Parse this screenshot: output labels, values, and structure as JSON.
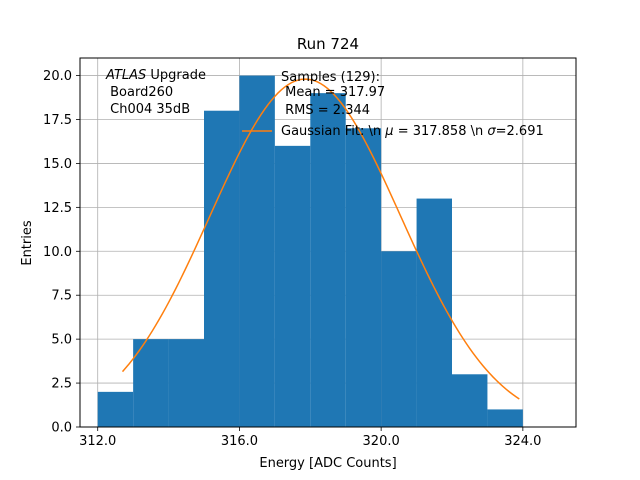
{
  "chart_data": {
    "type": "bar",
    "title": "Run 724",
    "xlabel": "Energy [ADC Counts]",
    "ylabel": "Entries",
    "xlim": [
      311.5,
      325.5
    ],
    "ylim": [
      0,
      21
    ],
    "xticks": [
      312,
      316,
      320,
      324
    ],
    "xtick_labels": [
      "312.0",
      "316.0",
      "320.0",
      "324.0"
    ],
    "yticks": [
      0,
      2.5,
      5,
      7.5,
      10,
      12.5,
      15,
      17.5,
      20
    ],
    "ytick_labels": [
      "0.0",
      "2.5",
      "5.0",
      "7.5",
      "10.0",
      "12.5",
      "15.0",
      "17.5",
      "20.0"
    ],
    "grid": true,
    "bar_color": "#1f77b4",
    "fit_color": "#ff7f0e",
    "histogram": {
      "bin_edges": [
        312,
        313,
        314,
        315,
        316,
        317,
        318,
        319,
        320,
        321,
        322,
        323,
        324
      ],
      "counts": [
        2,
        5,
        5,
        18,
        20,
        16,
        19,
        17,
        10,
        13,
        3,
        1
      ]
    },
    "fit": {
      "mu": 317.858,
      "sigma": 2.691,
      "peak": 19.8,
      "x_range": [
        312.7,
        323.9
      ]
    },
    "annotations": {
      "atlas_italic": "ATLAS",
      "atlas_rest": " Upgrade",
      "board": " Board260",
      "channel": " Ch004 35dB"
    },
    "legend": {
      "samples": "Samples (129):",
      "mean": " Mean = 317.97",
      "rms": " RMS = 2.344",
      "fit_prefix": "Gaussian Fit: \\n ",
      "fit_mu_symbol": "μ",
      "fit_mid": " = 317.858 \\n ",
      "fit_sigma_symbol": "σ",
      "fit_suffix": "=2.691"
    }
  }
}
